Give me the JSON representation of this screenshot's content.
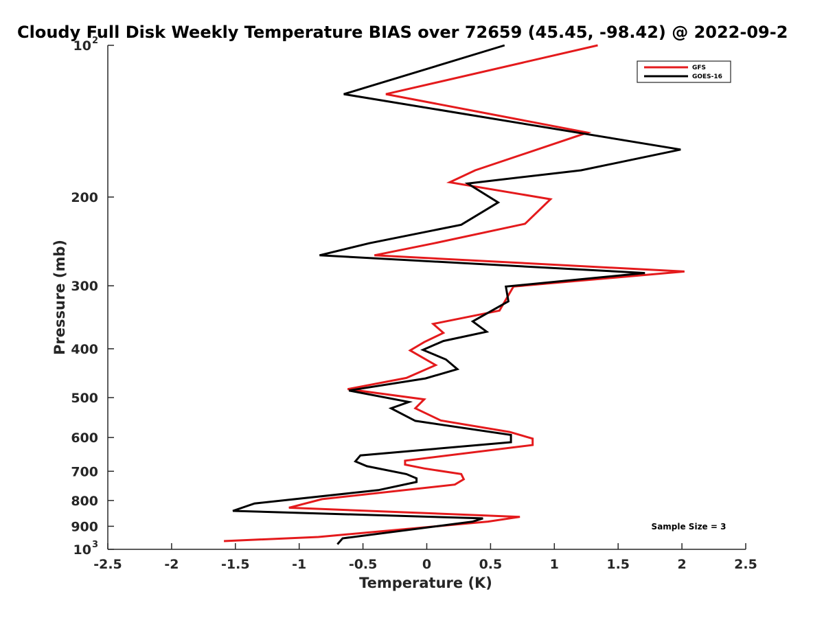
{
  "chart_data": {
    "type": "line",
    "title": "Cloudy Full Disk Weekly Temperature BIAS over 72659 (45.45, -98.42) @ 2022-09-2",
    "xlabel": "Temperature (K)",
    "ylabel": "Pressure (mb)",
    "xlim": [
      -2.5,
      2.5
    ],
    "ylim": [
      100,
      1000
    ],
    "y_scale": "log",
    "y_reversed": true,
    "grid": false,
    "legend_position": "top-right",
    "x_ticks": [
      "-2.5",
      "-2",
      "-1.5",
      "-1",
      "-0.5",
      "0",
      "0.5",
      "1",
      "1.5",
      "2",
      "2.5"
    ],
    "y_ticks": [
      {
        "value": 100,
        "base": "10",
        "exp": "2"
      },
      {
        "value": 200,
        "label": "200"
      },
      {
        "value": 300,
        "label": "300"
      },
      {
        "value": 400,
        "label": "400"
      },
      {
        "value": 500,
        "label": "500"
      },
      {
        "value": 600,
        "label": "600"
      },
      {
        "value": 700,
        "label": "700"
      },
      {
        "value": 800,
        "label": "800"
      },
      {
        "value": 900,
        "label": "900"
      },
      {
        "value": 1000,
        "base": "10",
        "exp": "3"
      }
    ],
    "annotation": "Sample Size = 3",
    "series": [
      {
        "name": "GFS",
        "color": "#e41a1c",
        "points": [
          [
            1.34,
            100
          ],
          [
            -0.32,
            125
          ],
          [
            1.26,
            149
          ],
          [
            0.38,
            177
          ],
          [
            0.18,
            187
          ],
          [
            0.97,
            202
          ],
          [
            0.77,
            226
          ],
          [
            0.06,
            247
          ],
          [
            -0.41,
            261
          ],
          [
            2.02,
            281
          ],
          [
            0.68,
            301
          ],
          [
            0.57,
            336
          ],
          [
            0.05,
            357
          ],
          [
            0.13,
            372
          ],
          [
            -0.02,
            388
          ],
          [
            -0.13,
            403
          ],
          [
            0.07,
            431
          ],
          [
            -0.16,
            457
          ],
          [
            -0.62,
            481
          ],
          [
            -0.02,
            504
          ],
          [
            -0.09,
            525
          ],
          [
            0.11,
            555
          ],
          [
            0.65,
            585
          ],
          [
            0.83,
            603
          ],
          [
            0.83,
            621
          ],
          [
            -0.17,
            667
          ],
          [
            -0.17,
            679
          ],
          [
            -0.02,
            691
          ],
          [
            0.27,
            709
          ],
          [
            0.29,
            726
          ],
          [
            0.22,
            744
          ],
          [
            -0.82,
            795
          ],
          [
            -1.08,
            827
          ],
          [
            0.73,
            862
          ],
          [
            0.48,
            881
          ],
          [
            -0.85,
            945
          ],
          [
            -1.59,
            963
          ]
        ]
      },
      {
        "name": "GOES-16",
        "color": "#000000",
        "points": [
          [
            0.61,
            100
          ],
          [
            -0.65,
            125
          ],
          [
            1.99,
            161
          ],
          [
            1.21,
            177
          ],
          [
            0.32,
            188
          ],
          [
            0.56,
            205
          ],
          [
            0.27,
            227
          ],
          [
            -0.45,
            247
          ],
          [
            -0.84,
            261
          ],
          [
            1.71,
            283
          ],
          [
            0.62,
            301
          ],
          [
            0.64,
            322
          ],
          [
            0.36,
            353
          ],
          [
            0.47,
            370
          ],
          [
            0.13,
            386
          ],
          [
            -0.03,
            402
          ],
          [
            0.15,
            420
          ],
          [
            0.24,
            439
          ],
          [
            -0.01,
            458
          ],
          [
            -0.61,
            484
          ],
          [
            -0.14,
            510
          ],
          [
            -0.28,
            525
          ],
          [
            -0.09,
            556
          ],
          [
            0.66,
            593
          ],
          [
            0.66,
            613
          ],
          [
            -0.52,
            651
          ],
          [
            -0.56,
            669
          ],
          [
            -0.47,
            684
          ],
          [
            -0.16,
            709
          ],
          [
            -0.08,
            723
          ],
          [
            -0.08,
            735
          ],
          [
            -0.38,
            763
          ],
          [
            -1.35,
            811
          ],
          [
            -1.52,
            839
          ],
          [
            0.44,
            868
          ],
          [
            0.36,
            881
          ],
          [
            -0.66,
            951
          ],
          [
            -0.7,
            977
          ]
        ]
      }
    ]
  }
}
